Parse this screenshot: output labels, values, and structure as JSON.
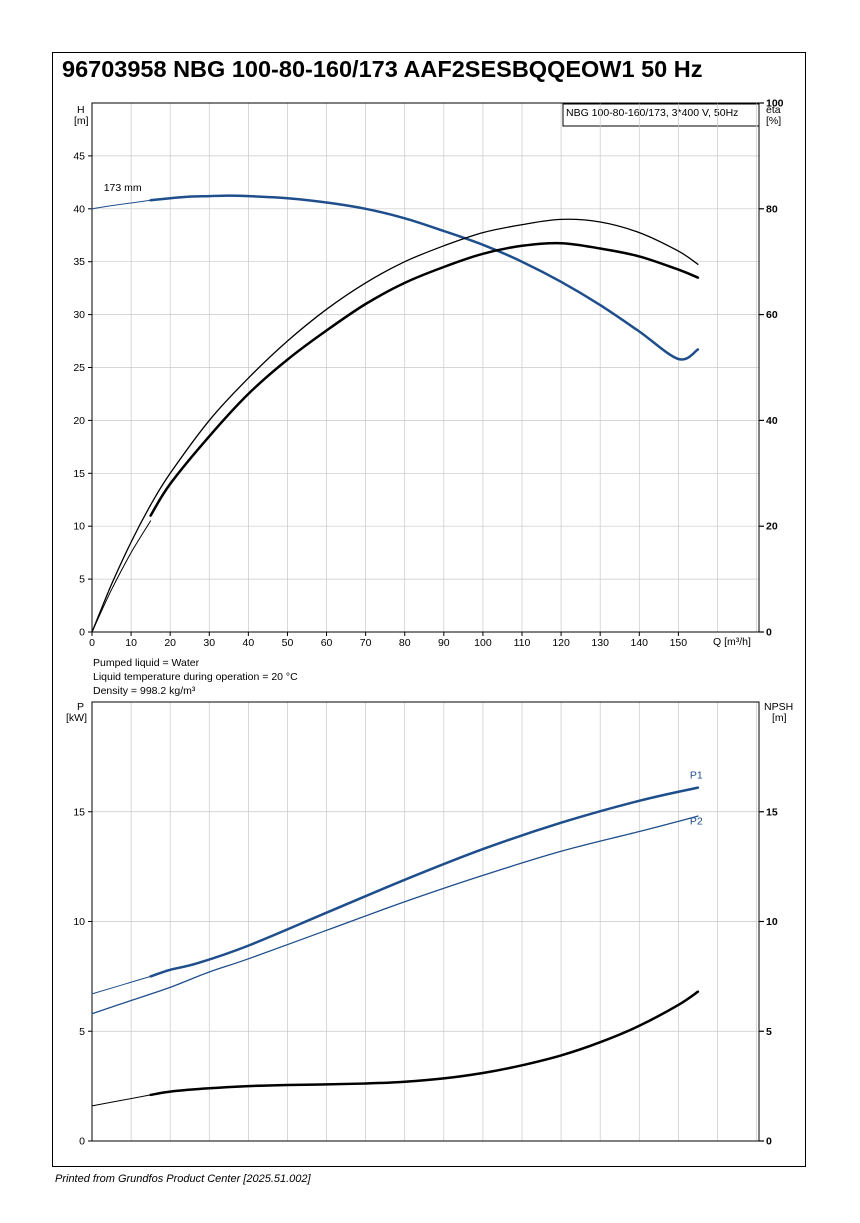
{
  "title": "96703958 NBG 100-80-160/173 AAF2SESBQQEOW1 50 Hz",
  "footer": "Printed from Grundfos Product Center [2025.51.002]",
  "colors": {
    "blue": "#1f4e8c",
    "black": "#000000",
    "grid": "#c8c8c8"
  },
  "conditions": [
    "Pumped liquid = Water",
    "Liquid temperature during operation = 20 °C",
    "Density = 998.2 kg/m³"
  ],
  "chart_data": [
    {
      "type": "line",
      "legend_box": "NBG 100-80-160/173, 3*400 V, 50Hz",
      "xlabel": "Q [m³/h]",
      "ylabel_left": [
        "H",
        "[m]"
      ],
      "ylabel_right": [
        "eta",
        "[%]"
      ],
      "xlim": [
        0,
        170
      ],
      "ylim_left": [
        0,
        50
      ],
      "ylim_right": [
        0,
        100
      ],
      "x_ticks": [
        0,
        10,
        20,
        30,
        40,
        50,
        60,
        70,
        80,
        90,
        100,
        110,
        120,
        130,
        140,
        150
      ],
      "y_ticks_left": [
        0,
        5,
        10,
        15,
        20,
        25,
        30,
        35,
        40,
        45
      ],
      "y_ticks_right": [
        0,
        20,
        40,
        60,
        80,
        100
      ],
      "grid": true,
      "curve_label": {
        "text": "173 mm",
        "x": 3,
        "y": 41.5
      },
      "series": [
        {
          "axis": "left",
          "color": "#1f4e8c",
          "width": 1,
          "x": [
            0,
            5,
            10,
            15
          ],
          "y": [
            40,
            40.3,
            40.55,
            40.8
          ]
        },
        {
          "axis": "left",
          "color": "#1f4e8c",
          "width": 2.5,
          "x": [
            15,
            20,
            25,
            30,
            35,
            40,
            50,
            60,
            70,
            80,
            90,
            100,
            110,
            120,
            130,
            140,
            150,
            155
          ],
          "y": [
            40.8,
            41.0,
            41.15,
            41.2,
            41.25,
            41.2,
            41.0,
            40.6,
            40.0,
            39.1,
            37.9,
            36.6,
            35.0,
            33.1,
            30.9,
            28.4,
            25.8,
            26.7
          ]
        },
        {
          "axis": "right",
          "color": "#000000",
          "width": 1.3,
          "x": [
            0,
            5,
            10,
            15,
            20,
            30,
            40,
            50,
            60,
            70,
            80,
            90,
            100,
            110,
            120,
            130,
            140,
            150,
            155
          ],
          "y": [
            0,
            9,
            17,
            24,
            30,
            40,
            48,
            55,
            61,
            66,
            70,
            73,
            75.5,
            77,
            78,
            77.5,
            75.5,
            72,
            69.5
          ]
        },
        {
          "axis": "right",
          "color": "#000000",
          "width": 2.5,
          "x": [
            15,
            20,
            30,
            40,
            50,
            60,
            70,
            80,
            90,
            100,
            110,
            120,
            130,
            140,
            150,
            155
          ],
          "y": [
            22,
            28,
            37,
            45,
            51.5,
            57,
            62,
            66,
            69,
            71.5,
            73,
            73.5,
            72.5,
            71,
            68.5,
            67
          ]
        },
        {
          "axis": "right",
          "color": "#000000",
          "width": 1,
          "x": [
            0,
            5,
            10,
            15
          ],
          "y": [
            0,
            8,
            15,
            21
          ]
        }
      ]
    },
    {
      "type": "line",
      "xlabel": "",
      "ylabel_left": [
        "P",
        "[kW]"
      ],
      "ylabel_right": [
        "NPSH",
        "[m]"
      ],
      "xlim": [
        0,
        170
      ],
      "ylim_left": [
        0,
        20
      ],
      "ylim_right": [
        0,
        20
      ],
      "y_ticks_left": [
        0,
        5,
        10,
        15
      ],
      "y_ticks_right": [
        0,
        5,
        10,
        15
      ],
      "grid": true,
      "series": [
        {
          "name": "P1",
          "axis": "left",
          "color": "#1f4e8c",
          "width": 1,
          "x": [
            0,
            15
          ],
          "y": [
            6.7,
            7.5
          ]
        },
        {
          "name": "P1",
          "axis": "left",
          "color": "#1f4e8c",
          "width": 2.5,
          "x": [
            15,
            20,
            27,
            40,
            60,
            80,
            100,
            120,
            140,
            155
          ],
          "y": [
            7.5,
            7.8,
            8.1,
            8.9,
            10.4,
            11.9,
            13.3,
            14.5,
            15.5,
            16.1
          ]
        },
        {
          "name": "P2",
          "axis": "left",
          "color": "#1f4e8c",
          "width": 1.3,
          "x": [
            0,
            10,
            20,
            30,
            40,
            60,
            80,
            100,
            120,
            140,
            155
          ],
          "y": [
            5.8,
            6.4,
            7.0,
            7.7,
            8.3,
            9.6,
            10.9,
            12.1,
            13.2,
            14.1,
            14.8
          ]
        },
        {
          "name": "NPSH",
          "axis": "right",
          "color": "#000000",
          "width": 1,
          "x": [
            0,
            15
          ],
          "y": [
            1.6,
            2.1
          ]
        },
        {
          "name": "NPSH",
          "axis": "right",
          "color": "#000000",
          "width": 2.5,
          "x": [
            15,
            20,
            30,
            40,
            50,
            60,
            70,
            80,
            90,
            100,
            110,
            120,
            130,
            140,
            150,
            155
          ],
          "y": [
            2.1,
            2.25,
            2.4,
            2.5,
            2.55,
            2.58,
            2.62,
            2.7,
            2.85,
            3.1,
            3.45,
            3.9,
            4.5,
            5.25,
            6.2,
            6.8
          ]
        }
      ],
      "series_labels": [
        {
          "text": "P1",
          "x": 155,
          "y": 16.6
        },
        {
          "text": "P2",
          "x": 155,
          "y": 14.5
        }
      ]
    }
  ]
}
